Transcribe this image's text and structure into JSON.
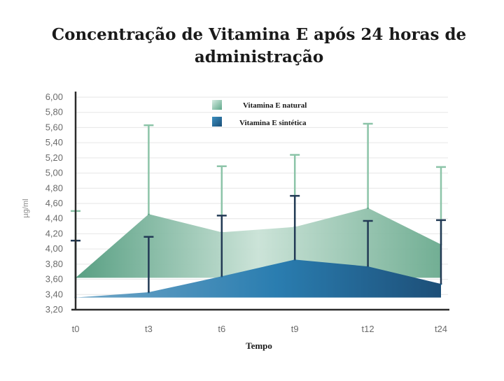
{
  "chart_data": {
    "type": "area",
    "title": "Concentração de Vitamina E após 24 horas de administração",
    "xlabel": "Tempo",
    "ylabel": "µg/ml",
    "categories": [
      "t0",
      "t3",
      "t6",
      "t9",
      "t12",
      "t24"
    ],
    "ylim": [
      3.2,
      6.0
    ],
    "yticks": [
      "3,20",
      "3,40",
      "3,60",
      "3,80",
      "4,00",
      "4,20",
      "4,40",
      "4,60",
      "4,80",
      "5,00",
      "5,20",
      "5,40",
      "5,60",
      "5,80",
      "6,00"
    ],
    "legend_position": "top-center",
    "grid": true,
    "series": [
      {
        "name": "Vitamina E natural",
        "color": "#5fa88a",
        "values": [
          3.62,
          4.46,
          4.22,
          4.29,
          4.54,
          4.06
        ],
        "error_upper": [
          4.5,
          5.63,
          5.09,
          5.24,
          5.65,
          5.08
        ]
      },
      {
        "name": "Vitamina E sintética",
        "color": "#1f5f8a",
        "values": [
          3.36,
          3.43,
          3.64,
          3.86,
          3.77,
          3.54
        ],
        "error_upper": [
          4.11,
          4.16,
          4.44,
          4.7,
          4.37,
          4.38
        ]
      }
    ]
  }
}
